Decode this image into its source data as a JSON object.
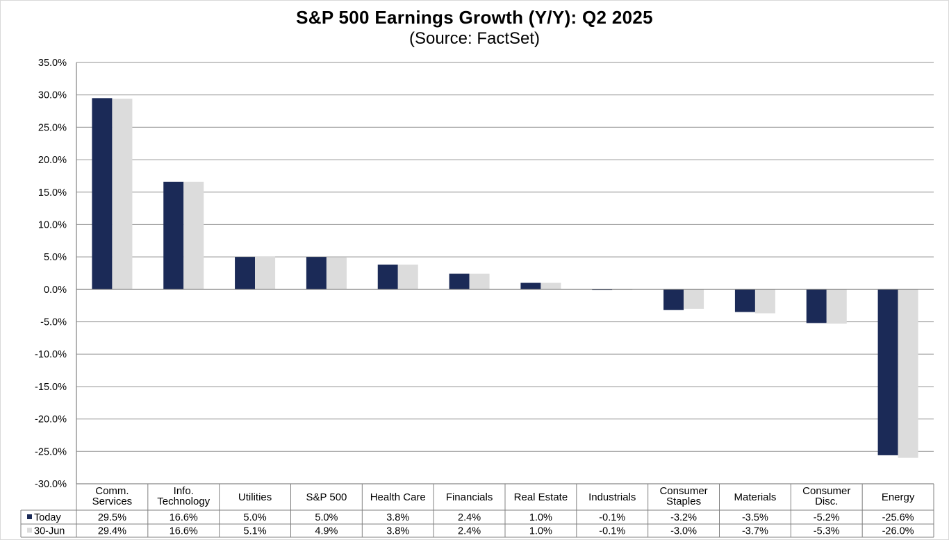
{
  "chart_data": {
    "type": "bar",
    "title": "S&P 500 Earnings Growth (Y/Y): Q2 2025",
    "subtitle": "(Source: FactSet)",
    "xlabel": "",
    "ylabel": "",
    "ylim": [
      -30,
      35
    ],
    "yticks": [
      35,
      30,
      25,
      20,
      15,
      10,
      5,
      0,
      -5,
      -10,
      -15,
      -20,
      -25,
      -30
    ],
    "ytick_labels": [
      "35.0%",
      "30.0%",
      "25.0%",
      "20.0%",
      "15.0%",
      "10.0%",
      "5.0%",
      "0.0%",
      "-5.0%",
      "-10.0%",
      "-15.0%",
      "-20.0%",
      "-25.0%",
      "-30.0%"
    ],
    "grid": true,
    "categories": [
      [
        "Comm.",
        "Services"
      ],
      [
        "Info.",
        "Technology"
      ],
      [
        "Utilities"
      ],
      [
        "S&P 500"
      ],
      [
        "Health Care"
      ],
      [
        "Financials"
      ],
      [
        "Real Estate"
      ],
      [
        "Industrials"
      ],
      [
        "Consumer",
        "Staples"
      ],
      [
        "Materials"
      ],
      [
        "Consumer",
        "Disc."
      ],
      [
        "Energy"
      ]
    ],
    "series": [
      {
        "name": "Today",
        "color": "#1b2a57",
        "values": [
          29.5,
          16.6,
          5.0,
          5.0,
          3.8,
          2.4,
          1.0,
          -0.1,
          -3.2,
          -3.5,
          -5.2,
          -25.6
        ],
        "labels": [
          "29.5%",
          "16.6%",
          "5.0%",
          "5.0%",
          "3.8%",
          "2.4%",
          "1.0%",
          "-0.1%",
          "-3.2%",
          "-3.5%",
          "-5.2%",
          "-25.6%"
        ]
      },
      {
        "name": "30-Jun",
        "color": "#dcdcdc",
        "values": [
          29.4,
          16.6,
          5.1,
          4.9,
          3.8,
          2.4,
          1.0,
          -0.1,
          -3.0,
          -3.7,
          -5.3,
          -26.0
        ],
        "labels": [
          "29.4%",
          "16.6%",
          "5.1%",
          "4.9%",
          "3.8%",
          "2.4%",
          "1.0%",
          "-0.1%",
          "-3.0%",
          "-3.7%",
          "-5.3%",
          "-26.0%"
        ]
      }
    ]
  }
}
